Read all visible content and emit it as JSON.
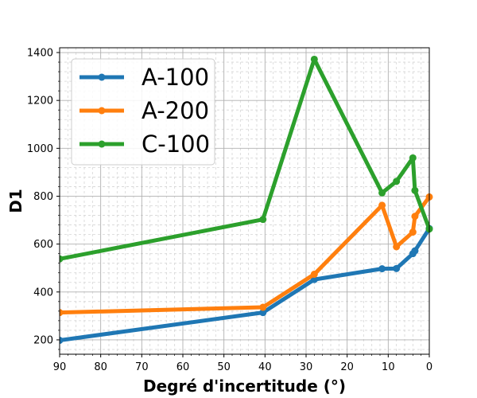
{
  "chart_data": {
    "type": "line",
    "title": "",
    "xlabel": "Degré d'incertitude (°)",
    "ylabel": "D1",
    "xlim": [
      90,
      0
    ],
    "ylim": [
      140,
      1420
    ],
    "x_ticks": [
      90,
      80,
      70,
      60,
      50,
      40,
      30,
      20,
      10,
      0
    ],
    "y_ticks": [
      200,
      400,
      600,
      800,
      1000,
      1200,
      1400
    ],
    "x_reversed": true,
    "grid": "major and minor",
    "legend_position": "upper-left",
    "series": [
      {
        "name": "A-100",
        "color": "#1f77b4",
        "x": [
          90,
          40.5,
          28,
          11.5,
          8,
          4,
          3.5,
          0
        ],
        "y": [
          198,
          314,
          452,
          497,
          498,
          560,
          572,
          665
        ]
      },
      {
        "name": "A-200",
        "color": "#ff7f0e",
        "x": [
          90,
          40.5,
          28,
          11.5,
          8,
          4,
          3.5,
          0
        ],
        "y": [
          314,
          336,
          474,
          762,
          589,
          650,
          716,
          797
        ]
      },
      {
        "name": "C-100",
        "color": "#2ca02c",
        "x": [
          90,
          40.5,
          28,
          11.5,
          8,
          4,
          3.5,
          0
        ],
        "y": [
          538,
          703,
          1372,
          814,
          862,
          960,
          824,
          663
        ]
      }
    ]
  }
}
